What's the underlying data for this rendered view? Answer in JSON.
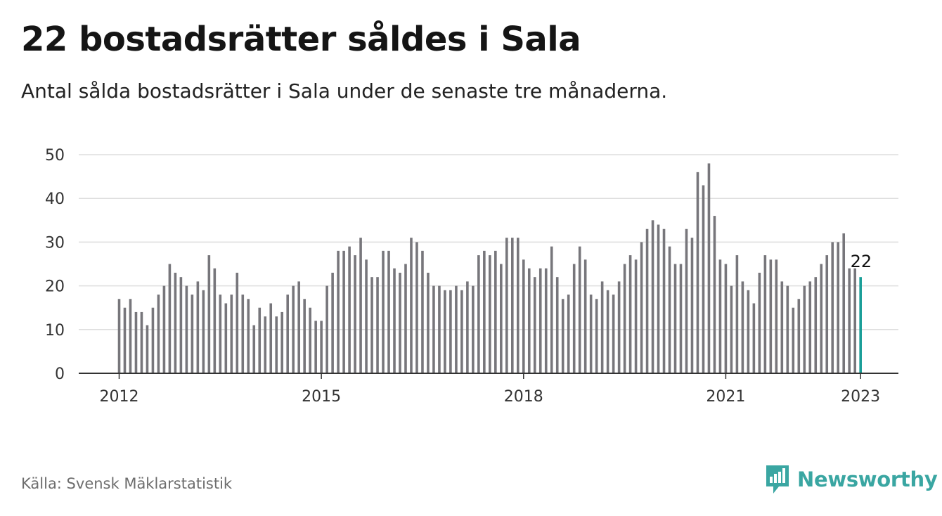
{
  "title": "22 bostadsrätter såldes i Sala",
  "subtitle": "Antal sålda bostadsrätter i Sala under de senaste tre månaderna.",
  "source": "Källa: Svensk Mäklarstatistik",
  "brand": {
    "name": "Newsworthy",
    "icon": "newsworthy-logo-icon",
    "color": "#3aa6a2"
  },
  "colors": {
    "bar": "#77767b",
    "highlight": "#1a9e98",
    "grid": "#dedede",
    "axis": "#333333"
  },
  "chart_data": {
    "type": "bar",
    "title": "",
    "xlabel": "",
    "ylabel": "",
    "ylim": [
      0,
      50
    ],
    "yticks": [
      0,
      10,
      20,
      30,
      40,
      50
    ],
    "xticks": [
      "2012",
      "2015",
      "2018",
      "2021",
      "2023"
    ],
    "x_start": "2012-01",
    "x_end": "2023-01",
    "grid": true,
    "annotation": {
      "label": "22",
      "x": "2023-01"
    },
    "values": [
      17,
      15,
      17,
      14,
      14,
      11,
      15,
      18,
      20,
      25,
      23,
      22,
      20,
      18,
      21,
      19,
      27,
      24,
      18,
      16,
      18,
      23,
      18,
      17,
      11,
      15,
      13,
      16,
      13,
      14,
      18,
      20,
      21,
      17,
      15,
      12,
      12,
      20,
      23,
      28,
      28,
      29,
      27,
      31,
      26,
      22,
      22,
      28,
      28,
      24,
      23,
      25,
      31,
      30,
      28,
      23,
      20,
      20,
      19,
      19,
      20,
      19,
      21,
      20,
      27,
      28,
      27,
      28,
      25,
      31,
      31,
      31,
      26,
      24,
      22,
      24,
      24,
      29,
      22,
      17,
      18,
      25,
      29,
      26,
      18,
      17,
      21,
      19,
      18,
      21,
      25,
      27,
      26,
      30,
      33,
      35,
      34,
      33,
      29,
      25,
      25,
      33,
      31,
      46,
      43,
      48,
      36,
      26,
      25,
      20,
      27,
      21,
      19,
      16,
      23,
      27,
      26,
      26,
      21,
      20,
      15,
      17,
      20,
      21,
      22,
      25,
      27,
      30,
      30,
      32,
      24,
      24,
      22
    ]
  }
}
